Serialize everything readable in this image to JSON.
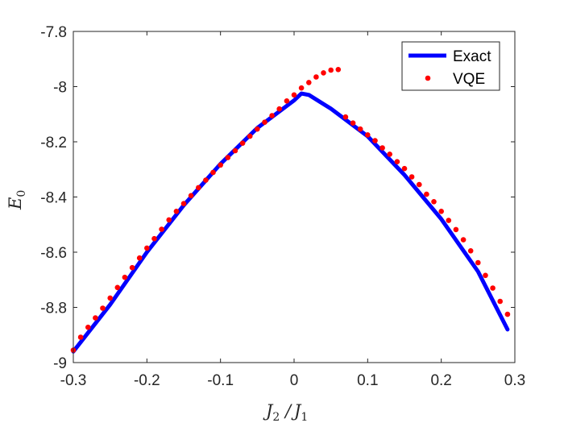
{
  "chart_data": {
    "type": "line",
    "xlabel": "J2/J1",
    "ylabel": "E0",
    "xlim": [
      -0.3,
      0.3
    ],
    "ylim": [
      -9,
      -7.8
    ],
    "xticks": [
      -0.3,
      -0.2,
      -0.1,
      0,
      0.1,
      0.2,
      0.3
    ],
    "xtick_labels": [
      "-0.3",
      "-0.2",
      "-0.1",
      "0",
      "0.1",
      "0.2",
      "0.3"
    ],
    "yticks": [
      -7.8,
      -8,
      -8.2,
      -8.4,
      -8.6,
      -8.8,
      -9
    ],
    "ytick_labels": [
      "-7.8",
      "-8",
      "-8.2",
      "-8.4",
      "-8.6",
      "-8.8",
      "-9"
    ],
    "grid": false,
    "legend_position": "top-right",
    "series": [
      {
        "name": "Exact",
        "style": "line",
        "color": "#0000ff",
        "x": [
          -0.3,
          -0.25,
          -0.2,
          -0.15,
          -0.1,
          -0.05,
          0.0,
          0.01,
          0.02,
          0.05,
          0.1,
          0.15,
          0.2,
          0.25,
          0.29
        ],
        "y": [
          -8.96,
          -8.79,
          -8.6,
          -8.43,
          -8.28,
          -8.15,
          -8.05,
          -8.025,
          -8.03,
          -8.08,
          -8.18,
          -8.32,
          -8.48,
          -8.67,
          -8.88
        ]
      },
      {
        "name": "VQE",
        "style": "markers",
        "color": "#ff0000",
        "x": [
          -0.3,
          -0.29,
          -0.28,
          -0.27,
          -0.26,
          -0.25,
          -0.24,
          -0.23,
          -0.22,
          -0.21,
          -0.2,
          -0.19,
          -0.18,
          -0.17,
          -0.16,
          -0.15,
          -0.14,
          -0.13,
          -0.12,
          -0.11,
          -0.1,
          -0.09,
          -0.08,
          -0.07,
          -0.06,
          -0.05,
          -0.04,
          -0.03,
          -0.02,
          -0.01,
          0.0,
          0.01,
          0.02,
          0.03,
          0.04,
          0.05,
          0.06,
          0.07,
          0.08,
          0.09,
          0.1,
          0.11,
          0.12,
          0.13,
          0.14,
          0.15,
          0.16,
          0.17,
          0.18,
          0.19,
          0.2,
          0.21,
          0.22,
          0.23,
          0.24,
          0.25,
          0.26,
          0.27,
          0.28,
          0.29
        ],
        "y": [
          -8.955,
          -8.908,
          -8.872,
          -8.838,
          -8.803,
          -8.766,
          -8.728,
          -8.691,
          -8.656,
          -8.621,
          -8.585,
          -8.551,
          -8.517,
          -8.483,
          -8.452,
          -8.424,
          -8.395,
          -8.366,
          -8.339,
          -8.311,
          -8.284,
          -8.257,
          -8.232,
          -8.205,
          -8.18,
          -8.154,
          -8.129,
          -8.105,
          -8.081,
          -8.052,
          -8.03,
          -8.005,
          -7.985,
          -7.965,
          -7.95,
          -7.94,
          -7.938,
          -8.11,
          -8.132,
          -8.154,
          -8.175,
          -8.196,
          -8.222,
          -8.245,
          -8.272,
          -8.297,
          -8.327,
          -8.355,
          -8.39,
          -8.417,
          -8.452,
          -8.485,
          -8.518,
          -8.555,
          -8.595,
          -8.638,
          -8.684,
          -8.73,
          -8.778,
          -8.825
        ]
      }
    ]
  }
}
